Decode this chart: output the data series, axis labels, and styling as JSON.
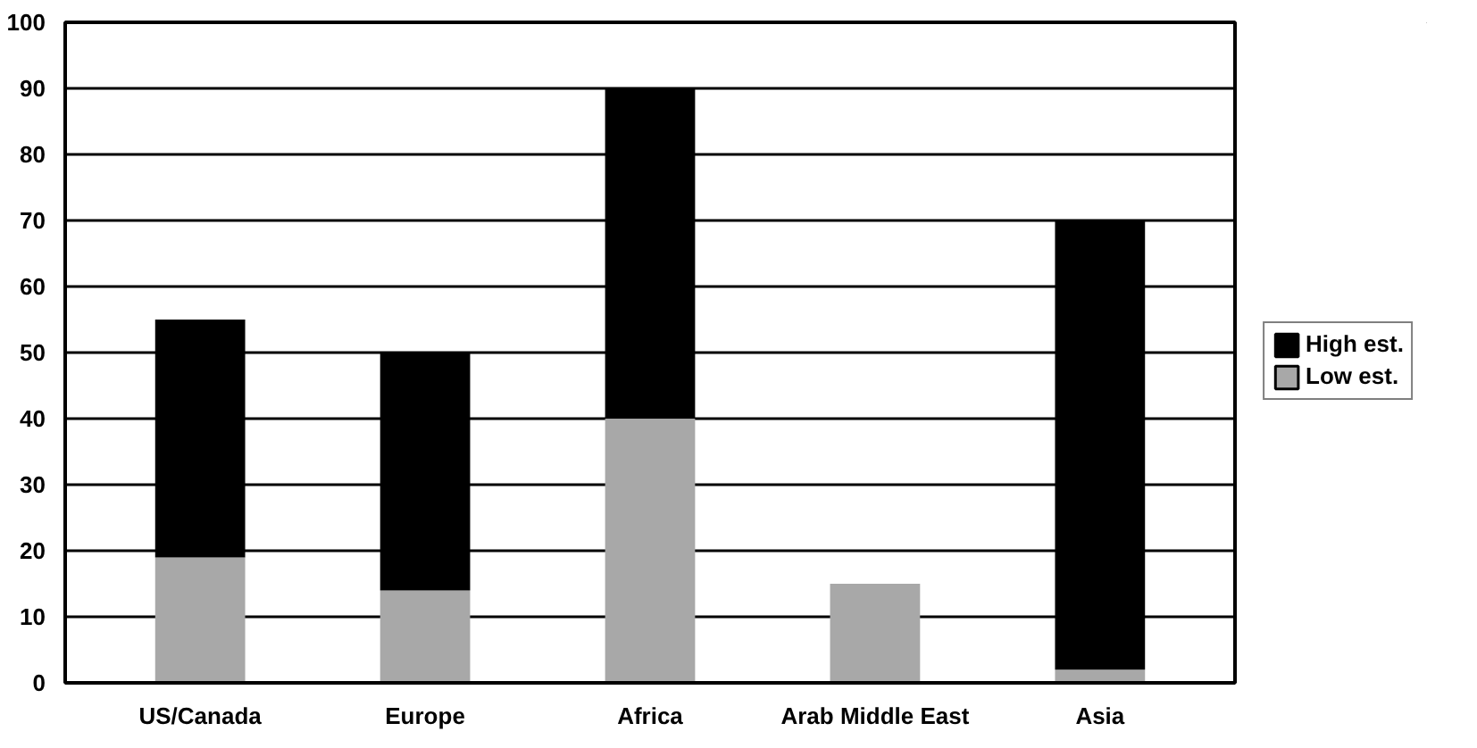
{
  "chart_data": {
    "type": "bar",
    "stacked": true,
    "categories": [
      "US/Canada",
      "Europe",
      "Africa",
      "Arab Middle East",
      "Asia"
    ],
    "series": [
      {
        "name": "Low est.",
        "color": "#a8a8a8",
        "values": [
          19,
          14,
          40,
          15,
          2
        ]
      },
      {
        "name": "High est.",
        "color": "#000000",
        "values": [
          36,
          36,
          50,
          null,
          68
        ]
      }
    ],
    "ylim": [
      0,
      100
    ],
    "yticks": [
      0,
      10,
      20,
      30,
      40,
      50,
      60,
      70,
      80,
      90,
      100
    ],
    "grid": "y",
    "legend": "right"
  }
}
